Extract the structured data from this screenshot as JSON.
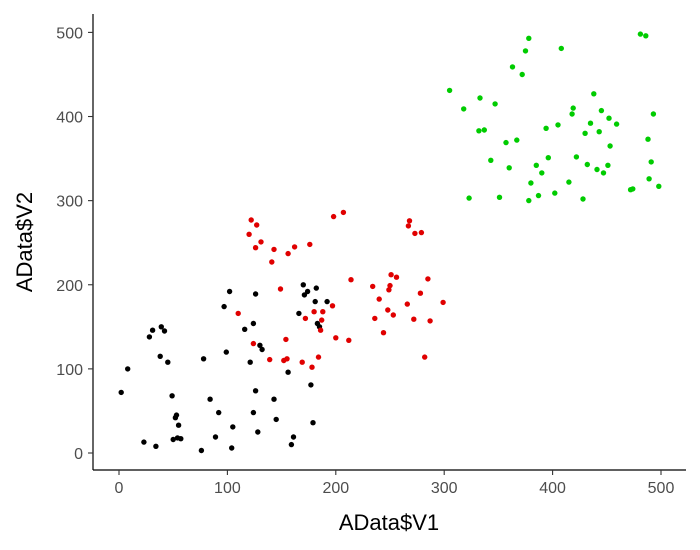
{
  "chart_data": {
    "type": "scatter",
    "xlabel": "AData$V1",
    "ylabel": "AData$V2",
    "xlim": [
      -10,
      510
    ],
    "ylim": [
      -20,
      520
    ],
    "xticks": [
      0,
      100,
      200,
      300,
      400,
      500
    ],
    "yticks": [
      0,
      100,
      200,
      300,
      400,
      500
    ],
    "grid": false,
    "legend": "none",
    "series": [
      {
        "color": "#000000",
        "points": [
          [
            2,
            72
          ],
          [
            8,
            100
          ],
          [
            23,
            13
          ],
          [
            28,
            138
          ],
          [
            31,
            146
          ],
          [
            34,
            8
          ],
          [
            38,
            115
          ],
          [
            39,
            150
          ],
          [
            42,
            145
          ],
          [
            45,
            108
          ],
          [
            49,
            68
          ],
          [
            50,
            16
          ],
          [
            52,
            42
          ],
          [
            53,
            45
          ],
          [
            54,
            18
          ],
          [
            55,
            33
          ],
          [
            57,
            17
          ],
          [
            76,
            3
          ],
          [
            78,
            112
          ],
          [
            84,
            64
          ],
          [
            89,
            19
          ],
          [
            92,
            48
          ],
          [
            97,
            174
          ],
          [
            99,
            120
          ],
          [
            102,
            192
          ],
          [
            104,
            6
          ],
          [
            105,
            31
          ],
          [
            116,
            147
          ],
          [
            121,
            108
          ],
          [
            124,
            48
          ],
          [
            124,
            154
          ],
          [
            126,
            189
          ],
          [
            126,
            74
          ],
          [
            128,
            25
          ],
          [
            130,
            128
          ],
          [
            132,
            123
          ],
          [
            145,
            40
          ],
          [
            143,
            64
          ],
          [
            156,
            96
          ],
          [
            159,
            10
          ],
          [
            161,
            19
          ],
          [
            166,
            166
          ],
          [
            170,
            200
          ],
          [
            171,
            188
          ],
          [
            174,
            192
          ],
          [
            177,
            81
          ],
          [
            179,
            36
          ],
          [
            181,
            180
          ],
          [
            182,
            196
          ],
          [
            183,
            154
          ],
          [
            185,
            150
          ],
          [
            192,
            180
          ]
        ]
      },
      {
        "color": "#e00000",
        "points": [
          [
            110,
            166
          ],
          [
            120,
            260
          ],
          [
            122,
            277
          ],
          [
            124,
            130
          ],
          [
            126,
            244
          ],
          [
            127,
            271
          ],
          [
            131,
            251
          ],
          [
            139,
            111
          ],
          [
            141,
            227
          ],
          [
            143,
            242
          ],
          [
            149,
            195
          ],
          [
            152,
            110
          ],
          [
            154,
            135
          ],
          [
            155,
            112
          ],
          [
            156,
            237
          ],
          [
            162,
            245
          ],
          [
            169,
            108
          ],
          [
            172,
            160
          ],
          [
            176,
            248
          ],
          [
            178,
            102
          ],
          [
            180,
            168
          ],
          [
            184,
            114
          ],
          [
            186,
            146
          ],
          [
            187,
            158
          ],
          [
            188,
            168
          ],
          [
            197,
            175
          ],
          [
            198,
            281
          ],
          [
            200,
            137
          ],
          [
            207,
            286
          ],
          [
            212,
            134
          ],
          [
            214,
            206
          ],
          [
            234,
            198
          ],
          [
            236,
            160
          ],
          [
            240,
            183
          ],
          [
            244,
            143
          ],
          [
            248,
            170
          ],
          [
            249,
            194
          ],
          [
            250,
            199
          ],
          [
            251,
            212
          ],
          [
            253,
            164
          ],
          [
            256,
            209
          ],
          [
            266,
            177
          ],
          [
            267,
            270
          ],
          [
            268,
            276
          ],
          [
            272,
            159
          ],
          [
            273,
            261
          ],
          [
            278,
            190
          ],
          [
            279,
            262
          ],
          [
            282,
            114
          ],
          [
            285,
            207
          ],
          [
            287,
            157
          ],
          [
            299,
            179
          ]
        ]
      },
      {
        "color": "#00cc00",
        "points": [
          [
            305,
            431
          ],
          [
            318,
            409
          ],
          [
            323,
            303
          ],
          [
            332,
            383
          ],
          [
            333,
            422
          ],
          [
            337,
            384
          ],
          [
            343,
            348
          ],
          [
            347,
            415
          ],
          [
            351,
            304
          ],
          [
            357,
            369
          ],
          [
            360,
            339
          ],
          [
            363,
            459
          ],
          [
            367,
            372
          ],
          [
            372,
            450
          ],
          [
            375,
            478
          ],
          [
            378,
            493
          ],
          [
            378,
            300
          ],
          [
            380,
            321
          ],
          [
            385,
            342
          ],
          [
            387,
            306
          ],
          [
            390,
            333
          ],
          [
            394,
            386
          ],
          [
            396,
            351
          ],
          [
            402,
            309
          ],
          [
            405,
            390
          ],
          [
            408,
            481
          ],
          [
            415,
            322
          ],
          [
            418,
            403
          ],
          [
            419,
            410
          ],
          [
            422,
            352
          ],
          [
            428,
            302
          ],
          [
            430,
            380
          ],
          [
            432,
            343
          ],
          [
            435,
            392
          ],
          [
            438,
            427
          ],
          [
            441,
            337
          ],
          [
            443,
            382
          ],
          [
            445,
            407
          ],
          [
            447,
            333
          ],
          [
            451,
            342
          ],
          [
            452,
            398
          ],
          [
            453,
            365
          ],
          [
            459,
            391
          ],
          [
            472,
            313
          ],
          [
            474,
            314
          ],
          [
            481,
            498
          ],
          [
            486,
            496
          ],
          [
            488,
            373
          ],
          [
            489,
            326
          ],
          [
            491,
            346
          ],
          [
            493,
            403
          ],
          [
            498,
            317
          ]
        ]
      }
    ]
  }
}
